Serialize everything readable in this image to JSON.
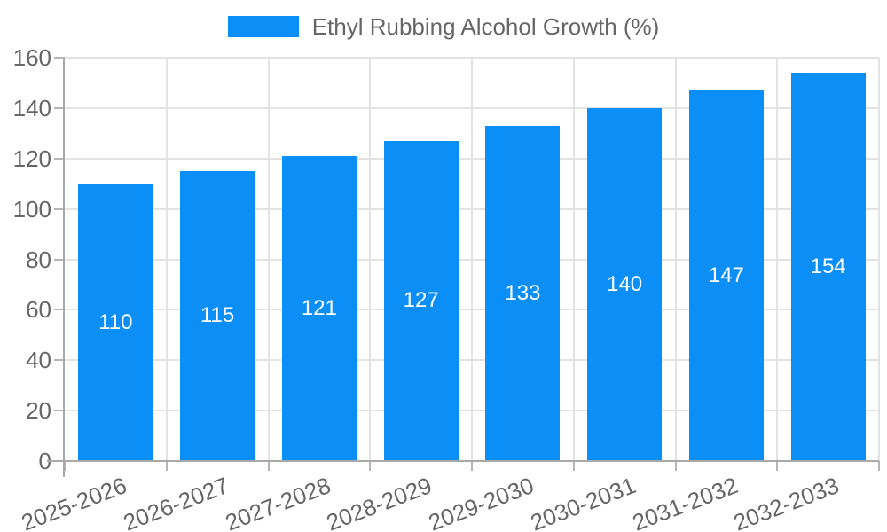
{
  "chart_data": {
    "type": "bar",
    "title": "Ethyl Rubbing Alcohol Growth (%)",
    "categories": [
      "2025-2026",
      "2026-2027",
      "2027-2028",
      "2028-2029",
      "2029-2030",
      "2030-2031",
      "2031-2032",
      "2032-2033"
    ],
    "values": [
      110,
      115,
      121,
      127,
      133,
      140,
      147,
      154
    ],
    "xlabel": "",
    "ylabel": "",
    "ylim": [
      0,
      160
    ],
    "yticks": [
      0,
      20,
      40,
      60,
      80,
      100,
      120,
      140,
      160
    ],
    "grid": true,
    "legend_position": "top",
    "legend_entries": [
      {
        "label": "Ethyl Rubbing Alcohol Growth (%)"
      }
    ],
    "colors": {
      "bar": "#0b8ff7",
      "value_label": "#ffffff",
      "axis_text": "#666666",
      "grid_line": "#e3e3e3",
      "tick_line": "#b5b5b5",
      "axis_line": "#a9a9a9",
      "background": "#ffffff"
    }
  }
}
